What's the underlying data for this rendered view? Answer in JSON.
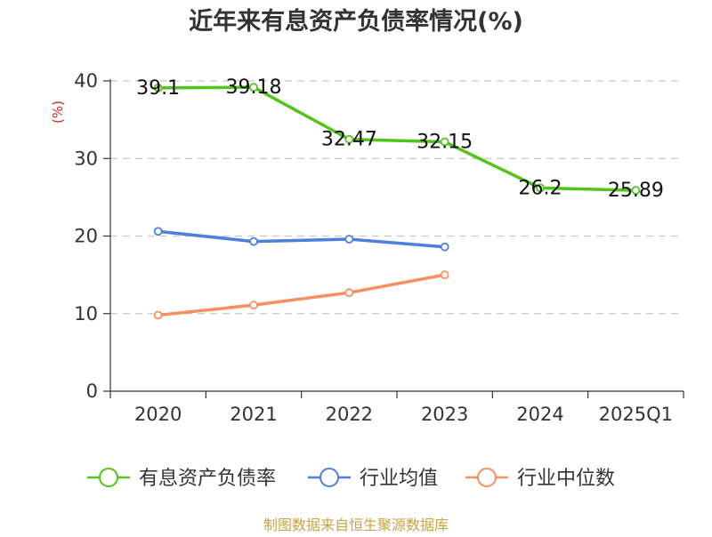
{
  "chart_data": {
    "type": "line",
    "title": "近年来有息资产负债率情况(%)",
    "ylabel": "(%)",
    "categories": [
      "2020",
      "2021",
      "2022",
      "2023",
      "2024",
      "2025Q1"
    ],
    "yticks": [
      "0",
      "10",
      "20",
      "30",
      "40"
    ],
    "ylim": [
      0,
      40
    ],
    "grid": true,
    "legend_position": "bottom",
    "series": [
      {
        "name": "有息资产负债率",
        "values": [
          39.1,
          39.18,
          32.47,
          32.15,
          26.2,
          25.89
        ],
        "labels": [
          "39.1",
          "39.18",
          "32.47",
          "32.15",
          "26.2",
          "25.89"
        ],
        "color": "#52c41a"
      },
      {
        "name": "行业均值",
        "values": [
          20.6,
          19.3,
          19.6,
          18.6,
          null,
          null
        ],
        "color": "#4f7fdc"
      },
      {
        "name": "行业中位数",
        "values": [
          9.8,
          11.1,
          12.7,
          15.0,
          null,
          null
        ],
        "color": "#f59060"
      }
    ]
  },
  "source_text": "制图数据来自恒生聚源数据库"
}
